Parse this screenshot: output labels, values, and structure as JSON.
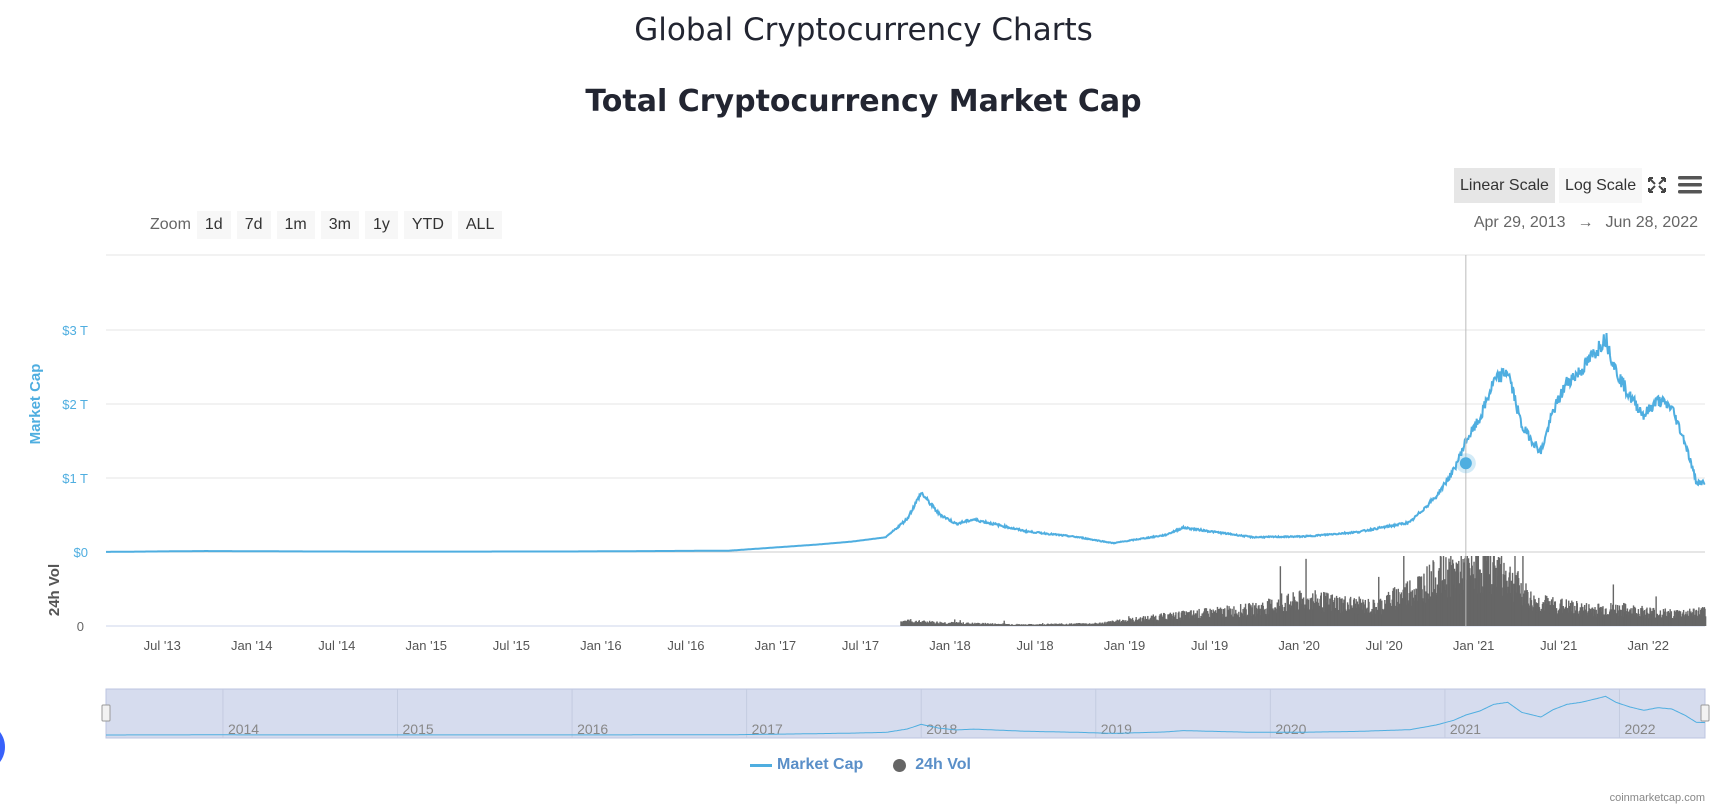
{
  "page": {
    "title": "Global Cryptocurrency Charts",
    "chart_title": "Total Cryptocurrency Market Cap"
  },
  "toolbar": {
    "linear_scale": "Linear Scale",
    "log_scale": "Log Scale",
    "fullscreen_icon": "fullscreen-icon",
    "menu_icon": "menu-icon"
  },
  "zoom": {
    "label": "Zoom",
    "buttons": [
      "1d",
      "7d",
      "1m",
      "3m",
      "1y",
      "YTD",
      "ALL"
    ]
  },
  "range": {
    "from": "Apr 29, 2013",
    "arrow": "→",
    "to": "Jun 28, 2022"
  },
  "legend": {
    "market_cap": "Market Cap",
    "volume": "24h Vol"
  },
  "credit": "coinmarketcap.com",
  "colors": {
    "market_cap_line": "#4faee0",
    "volume_bars": "#666666",
    "axis_label": "#4faee0",
    "navigator_fill": "#d6dcee"
  },
  "chart_data": {
    "type": "line",
    "title": "Total Cryptocurrency Market Cap",
    "x_range": [
      "Apr 29, 2013",
      "Jun 28, 2022"
    ],
    "x_ticks": [
      "Jul '13",
      "Jan '14",
      "Jul '14",
      "Jan '15",
      "Jul '15",
      "Jan '16",
      "Jul '16",
      "Jan '17",
      "Jul '17",
      "Jan '18",
      "Jul '18",
      "Jan '19",
      "Jul '19",
      "Jan '20",
      "Jul '20",
      "Jan '21",
      "Jul '21",
      "Jan '22"
    ],
    "y_axis": {
      "label": "Market Cap",
      "ticks": [
        "$0",
        "$1 T",
        "$2 T",
        "$3 T"
      ],
      "ylim": [
        0,
        3.9
      ],
      "unit": "trillion USD"
    },
    "volume_axis": {
      "label": "24h Vol",
      "ticks": [
        "0"
      ]
    },
    "navigator_labels": [
      "2014",
      "2015",
      "2016",
      "2017",
      "2018",
      "2019",
      "2020",
      "2021",
      "2022"
    ],
    "series": [
      {
        "name": "Market Cap",
        "x_years": [
          2013.33,
          2013.9,
          2014.5,
          2015.0,
          2016.0,
          2016.9,
          2017.4,
          2017.6,
          2017.8,
          2017.92,
          2018.0,
          2018.1,
          2018.2,
          2018.3,
          2018.6,
          2018.9,
          2019.1,
          2019.4,
          2019.5,
          2019.9,
          2020.2,
          2020.5,
          2020.8,
          2020.95,
          2021.05,
          2021.12,
          2021.2,
          2021.28,
          2021.36,
          2021.44,
          2021.55,
          2021.62,
          2021.7,
          2021.78,
          2021.86,
          2021.92,
          2021.98,
          2022.06,
          2022.14,
          2022.22,
          2022.3,
          2022.38,
          2022.44,
          2022.49
        ],
        "values": [
          0.0015,
          0.013,
          0.007,
          0.005,
          0.007,
          0.018,
          0.1,
          0.14,
          0.2,
          0.45,
          0.8,
          0.52,
          0.38,
          0.44,
          0.28,
          0.2,
          0.12,
          0.23,
          0.33,
          0.2,
          0.21,
          0.27,
          0.4,
          0.75,
          1.1,
          1.5,
          1.8,
          2.3,
          2.45,
          1.7,
          1.35,
          1.9,
          2.3,
          2.45,
          2.7,
          2.9,
          2.45,
          2.1,
          1.85,
          2.05,
          1.95,
          1.45,
          0.95,
          0.93
        ]
      },
      {
        "name": "24h Vol",
        "x_years": [
          2017.9,
          2018.2,
          2018.6,
          2019.0,
          2019.4,
          2019.9,
          2020.2,
          2020.6,
          2021.0,
          2021.3,
          2021.5,
          2021.8,
          2022.0,
          2022.3,
          2022.49
        ],
        "values": [
          0.02,
          0.012,
          0.006,
          0.01,
          0.04,
          0.07,
          0.11,
          0.08,
          0.22,
          0.25,
          0.1,
          0.07,
          0.07,
          0.05,
          0.06
        ]
      }
    ]
  }
}
